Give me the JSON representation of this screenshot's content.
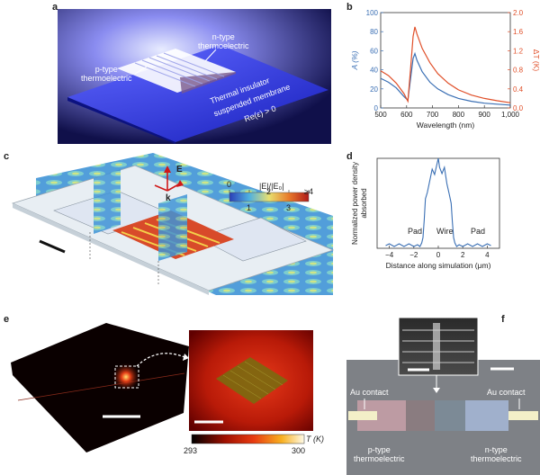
{
  "panels": {
    "a": {
      "label": "a",
      "ntype": "n-type\nthermoelectric",
      "ptype": "p-type\nthermoelectric",
      "membrane_l1": "Thermal insulator",
      "membrane_l2": "suspended membrane",
      "membrane_l3": "Re(ε) > 0"
    },
    "b": {
      "label": "b"
    },
    "c": {
      "label": "c",
      "E": "E",
      "k": "k",
      "cbar_title": "|E|/|E₀|",
      "cbar_ticks": [
        "0",
        "1",
        "2",
        "3",
        "≥4"
      ]
    },
    "d": {
      "label": "d",
      "pad_left": "Pad",
      "wire": "Wire",
      "pad_right": "Pad"
    },
    "e": {
      "label": "e",
      "cbar_unit": "T (K)",
      "cbar_min": "293",
      "cbar_max": "300"
    },
    "f": {
      "label": "f",
      "au_left": "Au contact",
      "au_right": "Au contact",
      "ptype": "p-type\nthermoelectric",
      "ntype": "n-type\nthermoelectric"
    }
  },
  "chart_data": [
    {
      "panel": "b",
      "type": "line",
      "xlabel": "Wavelength (nm)",
      "ylabel_left": "A (%)",
      "ylabel_right": "ΔT (K)",
      "xlim": [
        500,
        1000
      ],
      "ylim_left": [
        0,
        100
      ],
      "ylim_right": [
        0,
        2.0
      ],
      "xticks": [
        "500",
        "600",
        "700",
        "800",
        "900",
        "1,000"
      ],
      "yticks_left": [
        "0",
        "20",
        "40",
        "60",
        "80",
        "100"
      ],
      "yticks_right": [
        "0.0",
        "0.4",
        "0.8",
        "1.2",
        "1.6",
        "2.0"
      ],
      "colors": {
        "A": "#3a6fb4",
        "dT": "#e0502a"
      },
      "series": [
        {
          "axis": "left",
          "x": [
            500,
            530,
            560,
            590,
            605,
            615,
            625,
            632,
            640,
            660,
            690,
            720,
            760,
            800,
            850,
            900,
            950,
            1000
          ],
          "y": [
            31,
            27,
            21,
            12,
            8,
            30,
            52,
            57,
            50,
            38,
            27,
            20,
            14,
            10,
            7,
            5,
            4,
            3
          ]
        },
        {
          "axis": "right",
          "x": [
            500,
            530,
            560,
            590,
            605,
            615,
            625,
            632,
            640,
            660,
            690,
            720,
            760,
            800,
            850,
            900,
            950,
            1000
          ],
          "y": [
            0.78,
            0.68,
            0.52,
            0.3,
            0.14,
            0.8,
            1.5,
            1.7,
            1.55,
            1.25,
            0.95,
            0.72,
            0.52,
            0.38,
            0.27,
            0.2,
            0.15,
            0.11
          ]
        }
      ]
    },
    {
      "panel": "d",
      "type": "line",
      "xlabel": "Distance along simulation (μm)",
      "ylabel": "Normalized power density\nabsorbed",
      "xlim": [
        -5,
        5
      ],
      "ylim": [
        0,
        1
      ],
      "xticks": [
        "−4",
        "−2",
        "0",
        "2",
        "4"
      ],
      "color": "#3a6fb4",
      "series": [
        {
          "x": [
            -4.3,
            -4.0,
            -3.6,
            -3.2,
            -2.8,
            -2.4,
            -2.0,
            -1.7,
            -1.5,
            -1.35,
            -1.25,
            -1.15,
            -1.05,
            -0.9,
            -0.7,
            -0.5,
            -0.3,
            -0.1,
            0.0,
            0.1,
            0.3,
            0.5,
            0.7,
            0.9,
            1.05,
            1.15,
            1.25,
            1.35,
            1.5,
            1.7,
            2.0,
            2.4,
            2.8,
            3.2,
            3.6,
            4.0,
            4.3
          ],
          "y": [
            0.03,
            0.05,
            0.02,
            0.05,
            0.02,
            0.05,
            0.02,
            0.04,
            0.02,
            0.06,
            0.12,
            0.32,
            0.55,
            0.62,
            0.75,
            0.88,
            0.82,
            0.94,
            1.0,
            0.9,
            0.83,
            0.9,
            0.72,
            0.6,
            0.5,
            0.3,
            0.12,
            0.06,
            0.02,
            0.04,
            0.02,
            0.05,
            0.02,
            0.05,
            0.02,
            0.05,
            0.03
          ]
        }
      ]
    }
  ]
}
